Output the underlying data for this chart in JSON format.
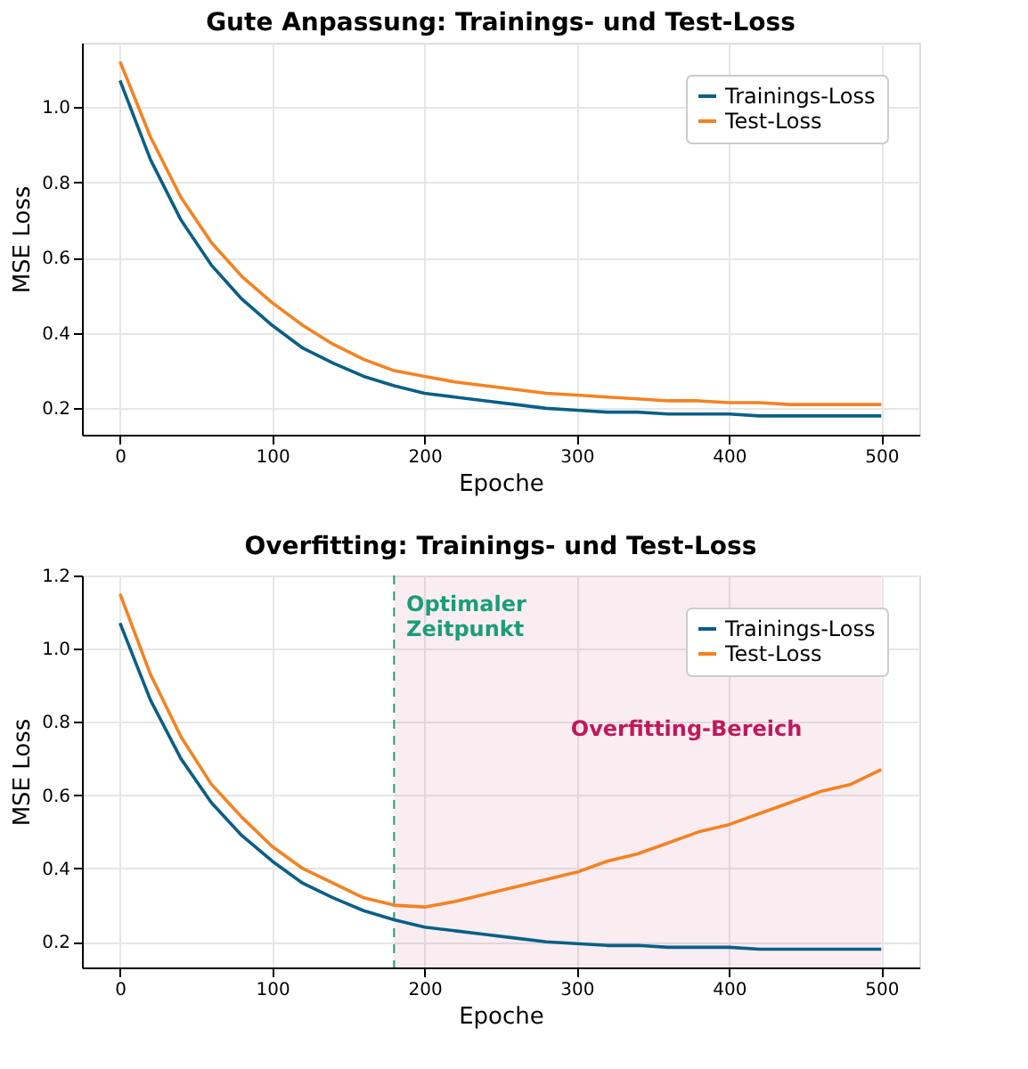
{
  "chart_data": [
    {
      "type": "line",
      "title": "Gute Anpassung: Trainings- und Test-Loss",
      "xlabel": "Epoche",
      "ylabel": "MSE Loss",
      "x": [
        0,
        20,
        40,
        60,
        80,
        100,
        120,
        140,
        160,
        180,
        200,
        220,
        240,
        260,
        280,
        300,
        320,
        340,
        360,
        380,
        400,
        420,
        440,
        460,
        480,
        500
      ],
      "series": [
        {
          "name": "Trainings-Loss",
          "color": "#0a5f86",
          "values": [
            1.07,
            0.86,
            0.7,
            0.58,
            0.49,
            0.42,
            0.36,
            0.32,
            0.285,
            0.26,
            0.24,
            0.23,
            0.22,
            0.21,
            0.2,
            0.195,
            0.19,
            0.19,
            0.185,
            0.185,
            0.185,
            0.18,
            0.18,
            0.18,
            0.18,
            0.18
          ]
        },
        {
          "name": "Test-Loss",
          "color": "#f58220",
          "values": [
            1.12,
            0.92,
            0.76,
            0.64,
            0.55,
            0.48,
            0.42,
            0.37,
            0.33,
            0.3,
            0.285,
            0.27,
            0.26,
            0.25,
            0.24,
            0.235,
            0.23,
            0.225,
            0.22,
            0.22,
            0.215,
            0.215,
            0.21,
            0.21,
            0.21,
            0.21
          ]
        }
      ],
      "xlim": [
        -25,
        525
      ],
      "ylim": [
        0.13,
        1.17
      ],
      "xticks": [
        0,
        100,
        200,
        300,
        400,
        500
      ],
      "yticks": [
        0.2,
        0.4,
        0.6,
        0.8,
        {
          "value": 1,
          "label": "1.0"
        }
      ],
      "grid": true,
      "legend": "top right",
      "marker": "none",
      "line_style": "solid"
    },
    {
      "type": "line",
      "title": "Overfitting: Trainings- und Test-Loss",
      "xlabel": "Epoche",
      "ylabel": "MSE Loss",
      "x": [
        0,
        20,
        40,
        60,
        80,
        100,
        120,
        140,
        160,
        180,
        200,
        220,
        240,
        260,
        280,
        300,
        320,
        340,
        360,
        380,
        400,
        420,
        440,
        460,
        480,
        500
      ],
      "series": [
        {
          "name": "Trainings-Loss",
          "color": "#0a5f86",
          "values": [
            1.07,
            0.86,
            0.7,
            0.58,
            0.49,
            0.42,
            0.36,
            0.32,
            0.285,
            0.26,
            0.24,
            0.23,
            0.22,
            0.21,
            0.2,
            0.195,
            0.19,
            0.19,
            0.185,
            0.185,
            0.185,
            0.18,
            0.18,
            0.18,
            0.18,
            0.18
          ]
        },
        {
          "name": "Test-Loss",
          "color": "#f58220",
          "values": [
            1.15,
            0.93,
            0.76,
            0.63,
            0.54,
            0.46,
            0.4,
            0.36,
            0.32,
            0.3,
            0.295,
            0.31,
            0.33,
            0.35,
            0.37,
            0.39,
            0.42,
            0.44,
            0.47,
            0.5,
            0.52,
            0.55,
            0.58,
            0.61,
            0.63,
            0.67
          ]
        }
      ],
      "ref_lines": [
        {
          "axis": "x",
          "value": 180,
          "label": "Optimaler\nZeitpunkt",
          "color": "#1a9e77",
          "line_style": "dashed"
        }
      ],
      "bands": [
        {
          "axis": "x",
          "from": 180,
          "to": 500,
          "label": "Overfitting-Bereich",
          "color": "#c2185b"
        }
      ],
      "xlim": [
        -25,
        525
      ],
      "ylim": [
        0.13,
        1.2
      ],
      "xticks": [
        0,
        100,
        200,
        300,
        400,
        500
      ],
      "yticks": [
        0.2,
        0.4,
        0.6,
        0.8,
        {
          "value": 1,
          "label": "1.0"
        },
        1.2
      ],
      "grid": true,
      "legend": "top right",
      "marker": "none",
      "line_style": "solid"
    }
  ]
}
